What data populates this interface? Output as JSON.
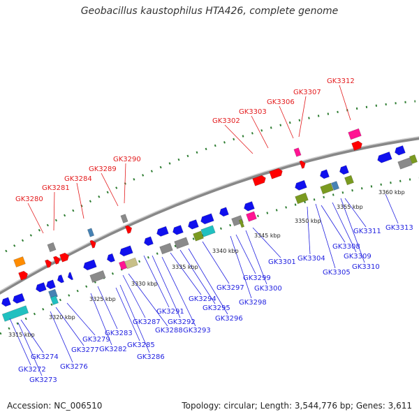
{
  "header": {
    "title": "Geobacillus kaustophilus HTA426, complete genome"
  },
  "footer": {
    "accession": "Accession: NC_006510",
    "topology": "Topology: circular; Length: 3,544,776 bp; Genes: 3,611"
  },
  "scale_ticks": [
    "3315 kbp",
    "3320 kbp",
    "3325 kbp",
    "3330 kbp",
    "3335 kbp",
    "3340 kbp",
    "3345 kbp",
    "3350 kbp",
    "3355 kbp",
    "3360 kbp"
  ],
  "forward_labels": [
    "GK3280",
    "GK3281",
    "GK3284",
    "GK3289",
    "GK3290",
    "GK3302",
    "GK3303",
    "GK3306",
    "GK3307",
    "GK3312"
  ],
  "reverse_labels": [
    "GK3272",
    "GK3273",
    "GK3274",
    "GK3276",
    "GK3277",
    "GK3279",
    "GK3282",
    "GK3283",
    "GK3285",
    "GK3286",
    "GK3287",
    "GK3288",
    "GK3291",
    "GK3292",
    "GK3293",
    "GK3294",
    "GK3295",
    "GK3296",
    "GK3297",
    "GK3298",
    "GK3299",
    "GK3300",
    "GK3301",
    "GK3304",
    "GK3305",
    "GK3308",
    "GK3309",
    "GK3310",
    "GK3311",
    "GK3313"
  ],
  "colors": {
    "forward_label": "#e31a1c",
    "reverse_label": "#1f1fe0",
    "forward_gene": "#ff0000",
    "reverse_gene": "#1010ee",
    "backbone": "#777777",
    "tick": "#2e7d32",
    "rna_orange": "#ff8c00",
    "magenta": "#ff1493",
    "cyan": "#20c0c0",
    "olive": "#7a9a20",
    "gray": "#8a8a8a",
    "khaki": "#c8c088",
    "steel": "#4682b4"
  }
}
